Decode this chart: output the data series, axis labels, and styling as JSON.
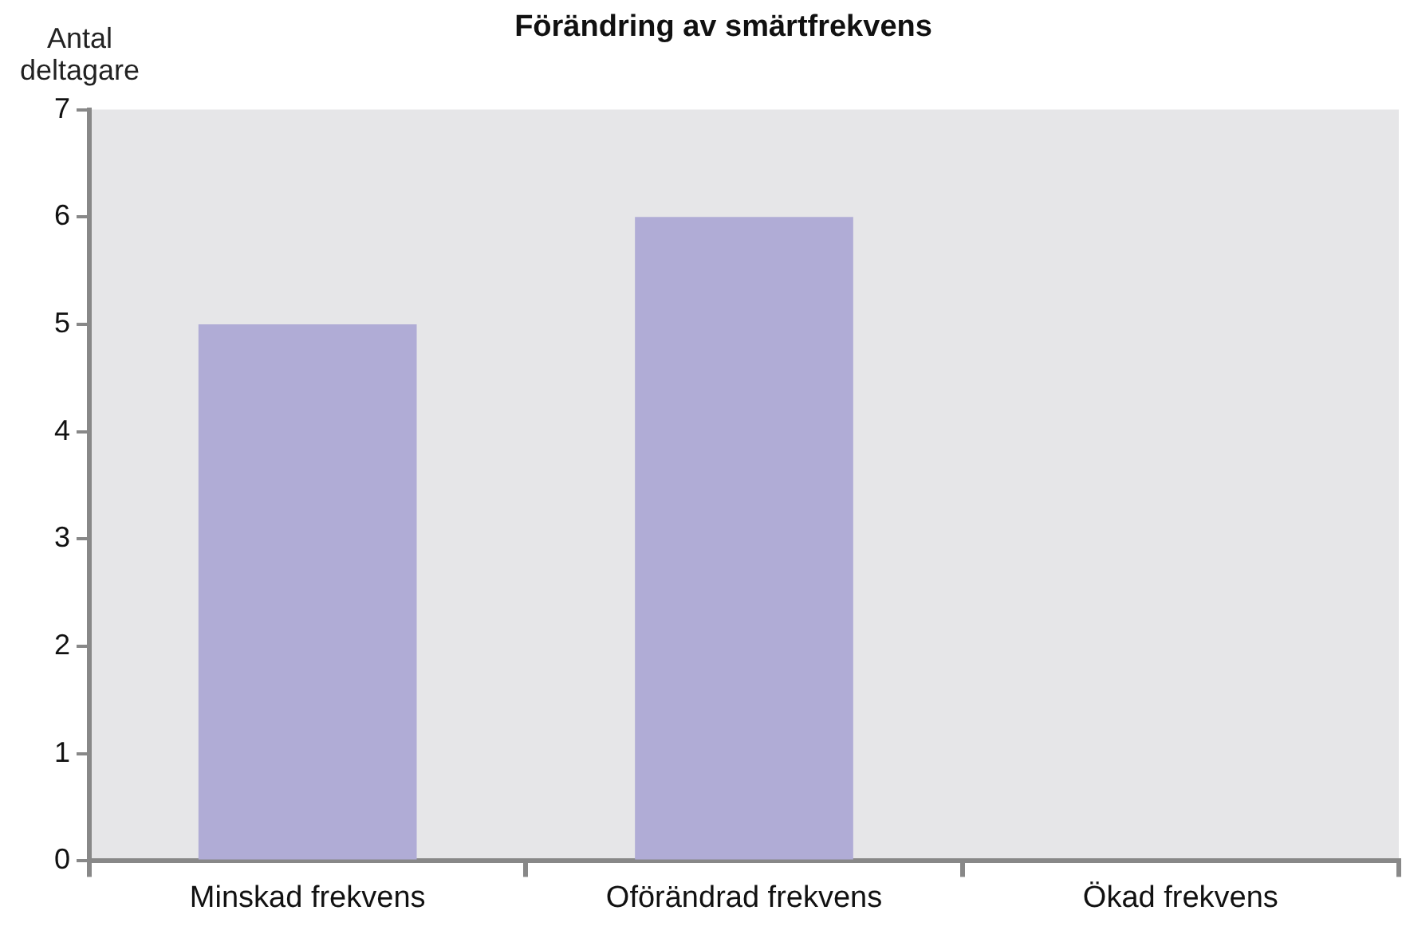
{
  "chart_data": {
    "type": "bar",
    "title": "Förändring av smärtfrekvens",
    "ylabel": "Antal deltagare",
    "categories": [
      "Minskad frekvens",
      "Oförändrad frekvens",
      "Ökad frekvens"
    ],
    "values": [
      5,
      6,
      0
    ],
    "color": "#b0acd6",
    "ylim": [
      0,
      7
    ],
    "yticks": [
      0,
      1,
      2,
      3,
      4,
      5,
      6,
      7
    ],
    "grid": false,
    "legend": false
  }
}
